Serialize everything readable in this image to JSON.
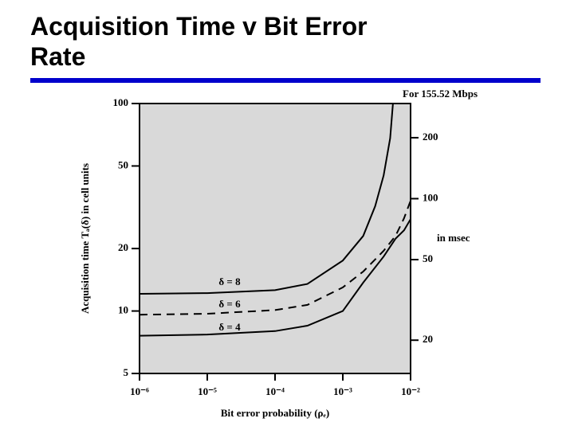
{
  "chart_data": {
    "type": "line",
    "title": "Acquisition Time v Bit Error Rate",
    "xlabel": "Bit error probability (ρₑ)",
    "ylabel": "Acquisition time Tₐ(δ) in cell units",
    "annotations": [
      "For 155.52 Mbps",
      "in msec"
    ],
    "log_x": true,
    "log_y": true,
    "xlim": [
      1e-06,
      0.01
    ],
    "xticks": [
      {
        "value": 1e-06,
        "label": "10⁻⁶"
      },
      {
        "value": 1e-05,
        "label": "10⁻⁵"
      },
      {
        "value": 0.0001,
        "label": "10⁻⁴"
      },
      {
        "value": 0.001,
        "label": "10⁻³"
      },
      {
        "value": 0.01,
        "label": "10⁻²"
      }
    ],
    "ylim": [
      5,
      100
    ],
    "yticks": [
      5,
      10,
      20,
      50,
      100
    ],
    "y2lim": [
      13.7,
      295
    ],
    "y2ticks": [
      20,
      50,
      100,
      200
    ],
    "background": "#d9d9d9",
    "series": [
      {
        "name": "δ = 8",
        "color": "#000000",
        "dashed": false,
        "x": [
          1e-06,
          1e-05,
          0.0001,
          0.0003,
          0.001,
          0.002,
          0.003,
          0.004,
          0.005,
          0.0055
        ],
        "values": [
          12.1,
          12.2,
          12.6,
          13.5,
          17.5,
          23,
          32,
          45,
          68,
          100
        ]
      },
      {
        "name": "δ = 6",
        "color": "#000000",
        "dashed": true,
        "x": [
          1e-06,
          1e-05,
          0.0001,
          0.0003,
          0.001,
          0.002,
          0.004,
          0.006,
          0.008,
          0.01
        ],
        "values": [
          9.6,
          9.7,
          10.1,
          10.7,
          13,
          15.5,
          19.5,
          23,
          28,
          34
        ]
      },
      {
        "name": "δ = 4",
        "color": "#000000",
        "dashed": false,
        "x": [
          1e-06,
          1e-05,
          0.0001,
          0.0003,
          0.001,
          0.002,
          0.004,
          0.006,
          0.008,
          0.01
        ],
        "values": [
          7.6,
          7.7,
          8.0,
          8.5,
          10,
          13.7,
          18.3,
          22.3,
          24.5,
          27.7
        ]
      }
    ]
  }
}
